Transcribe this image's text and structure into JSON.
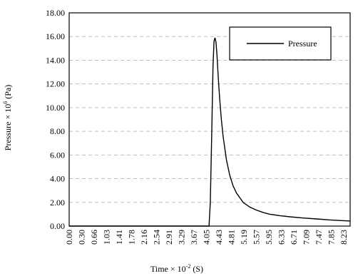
{
  "chart_data": {
    "type": "line",
    "title": "",
    "xlabel": {
      "prefix": "Time × 10",
      "exp": "-2",
      "suffix": " (S)"
    },
    "ylabel": {
      "prefix": "Pressure × 10",
      "exp": "6",
      "suffix": " (Pa)"
    },
    "x_tick_labels": [
      "0.00",
      "0.30",
      "0.66",
      "1.03",
      "1.41",
      "1.78",
      "2.16",
      "2.54",
      "2.91",
      "3.29",
      "3.67",
      "4.05",
      "4.43",
      "4.81",
      "5.19",
      "5.57",
      "5.95",
      "6.33",
      "6.71",
      "7.09",
      "7.47",
      "7.85",
      "8.23"
    ],
    "xlim": [
      0,
      8.4
    ],
    "ylim": [
      0,
      18
    ],
    "y_ticks": [
      "0.00",
      "2.00",
      "4.00",
      "6.00",
      "8.00",
      "10.00",
      "12.00",
      "14.00",
      "16.00",
      "18.00"
    ],
    "grid": {
      "horizontal": true,
      "style": "dashed"
    },
    "legend": {
      "position": "top-right",
      "entries": [
        "Pressure"
      ]
    },
    "series": [
      {
        "name": "Pressure",
        "color": "#000000",
        "x": [
          0.0,
          4.18,
          4.22,
          4.26,
          4.3,
          4.33,
          4.36,
          4.39,
          4.42,
          4.46,
          4.5,
          4.55,
          4.6,
          4.7,
          4.8,
          4.9,
          5.0,
          5.2,
          5.4,
          5.6,
          5.8,
          6.0,
          6.3,
          6.6,
          7.0,
          7.4,
          7.8,
          8.2,
          8.4
        ],
        "y": [
          0.0,
          0.0,
          2.0,
          7.5,
          13.5,
          15.6,
          15.9,
          15.5,
          14.4,
          12.4,
          10.7,
          9.0,
          7.6,
          5.6,
          4.3,
          3.4,
          2.8,
          2.0,
          1.6,
          1.35,
          1.15,
          1.0,
          0.88,
          0.78,
          0.68,
          0.6,
          0.52,
          0.46,
          0.43
        ]
      }
    ]
  }
}
